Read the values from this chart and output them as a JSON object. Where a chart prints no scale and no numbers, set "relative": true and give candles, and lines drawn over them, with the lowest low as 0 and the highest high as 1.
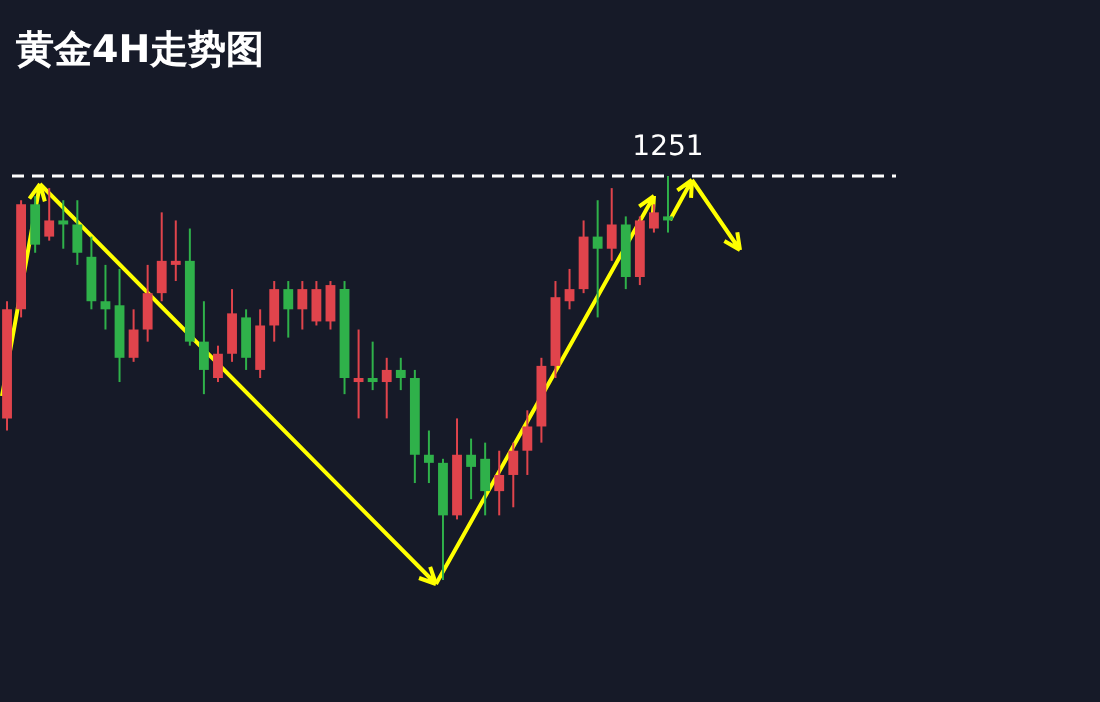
{
  "chart_data": {
    "type": "candlestick",
    "title": "黄金4H走势图",
    "relative": true,
    "tick_labels": false,
    "legend": false,
    "annotations": [
      "1251"
    ],
    "categories": [
      null,
      null,
      null,
      null,
      null,
      null,
      null,
      null,
      null,
      null,
      null,
      null,
      null,
      null,
      null,
      null,
      null,
      null,
      null,
      null,
      null,
      null,
      null,
      null,
      null,
      null,
      null,
      null,
      null,
      null,
      null,
      null,
      null,
      null,
      null,
      null,
      null,
      null,
      null,
      null,
      null,
      null,
      null,
      null,
      null,
      null,
      null,
      null,
      null,
      null,
      null,
      null,
      null,
      null,
      null,
      null,
      null,
      null,
      null,
      null,
      null,
      null,
      null,
      null
    ],
    "ohlc": [
      [
        0.4,
        0.69,
        0.37,
        0.67
      ],
      [
        0.67,
        0.94,
        0.65,
        0.93
      ],
      [
        0.93,
        0.95,
        0.81,
        0.83
      ],
      [
        0.85,
        0.97,
        0.84,
        0.89
      ],
      [
        0.89,
        0.94,
        0.82,
        0.88
      ],
      [
        0.88,
        0.94,
        0.78,
        0.81
      ],
      [
        0.8,
        0.85,
        0.67,
        0.69
      ],
      [
        0.69,
        0.78,
        0.62,
        0.67
      ],
      [
        0.68,
        0.77,
        0.49,
        0.55
      ],
      [
        0.55,
        0.67,
        0.54,
        0.62
      ],
      [
        0.62,
        0.78,
        0.59,
        0.71
      ],
      [
        0.71,
        0.91,
        0.69,
        0.79
      ],
      [
        0.78,
        0.89,
        0.74,
        0.79
      ],
      [
        0.79,
        0.87,
        0.58,
        0.59
      ],
      [
        0.59,
        0.69,
        0.46,
        0.52
      ],
      [
        0.5,
        0.58,
        0.49,
        0.56
      ],
      [
        0.56,
        0.72,
        0.54,
        0.66
      ],
      [
        0.65,
        0.67,
        0.52,
        0.55
      ],
      [
        0.52,
        0.67,
        0.5,
        0.63
      ],
      [
        0.63,
        0.74,
        0.59,
        0.72
      ],
      [
        0.72,
        0.74,
        0.6,
        0.67
      ],
      [
        0.67,
        0.74,
        0.62,
        0.72
      ],
      [
        0.64,
        0.74,
        0.63,
        0.72
      ],
      [
        0.64,
        0.74,
        0.62,
        0.73
      ],
      [
        0.72,
        0.74,
        0.46,
        0.5
      ],
      [
        0.49,
        0.62,
        0.4,
        0.5
      ],
      [
        0.5,
        0.59,
        0.47,
        0.49
      ],
      [
        0.49,
        0.55,
        0.4,
        0.52
      ],
      [
        0.52,
        0.55,
        0.47,
        0.5
      ],
      [
        0.5,
        0.52,
        0.24,
        0.31
      ],
      [
        0.31,
        0.37,
        0.24,
        0.29
      ],
      [
        0.29,
        0.3,
        0,
        0.16
      ],
      [
        0.16,
        0.4,
        0.15,
        0.31
      ],
      [
        0.31,
        0.35,
        0.2,
        0.28
      ],
      [
        0.3,
        0.34,
        0.16,
        0.22
      ],
      [
        0.22,
        0.32,
        0.16,
        0.26
      ],
      [
        0.26,
        0.34,
        0.18,
        0.32
      ],
      [
        0.32,
        0.42,
        0.26,
        0.38
      ],
      [
        0.38,
        0.55,
        0.34,
        0.53
      ],
      [
        0.53,
        0.74,
        0.5,
        0.7
      ],
      [
        0.69,
        0.77,
        0.67,
        0.72
      ],
      [
        0.72,
        0.89,
        0.71,
        0.85
      ],
      [
        0.85,
        0.94,
        0.65,
        0.82
      ],
      [
        0.82,
        0.97,
        0.79,
        0.88
      ],
      [
        0.88,
        0.9,
        0.72,
        0.75
      ],
      [
        0.75,
        0.9,
        0.73,
        0.89
      ],
      [
        0.87,
        0.93,
        0.86,
        0.91
      ],
      [
        0.9,
        1.0,
        0.86,
        0.89
      ],
      null,
      null,
      null,
      null,
      null,
      null,
      null,
      null,
      null,
      null,
      null,
      null,
      null,
      null,
      null,
      null
    ],
    "ref_lines": [
      {
        "axis": "y",
        "value": 1,
        "line_style": "dashed",
        "color": "#ffffff"
      }
    ]
  }
}
